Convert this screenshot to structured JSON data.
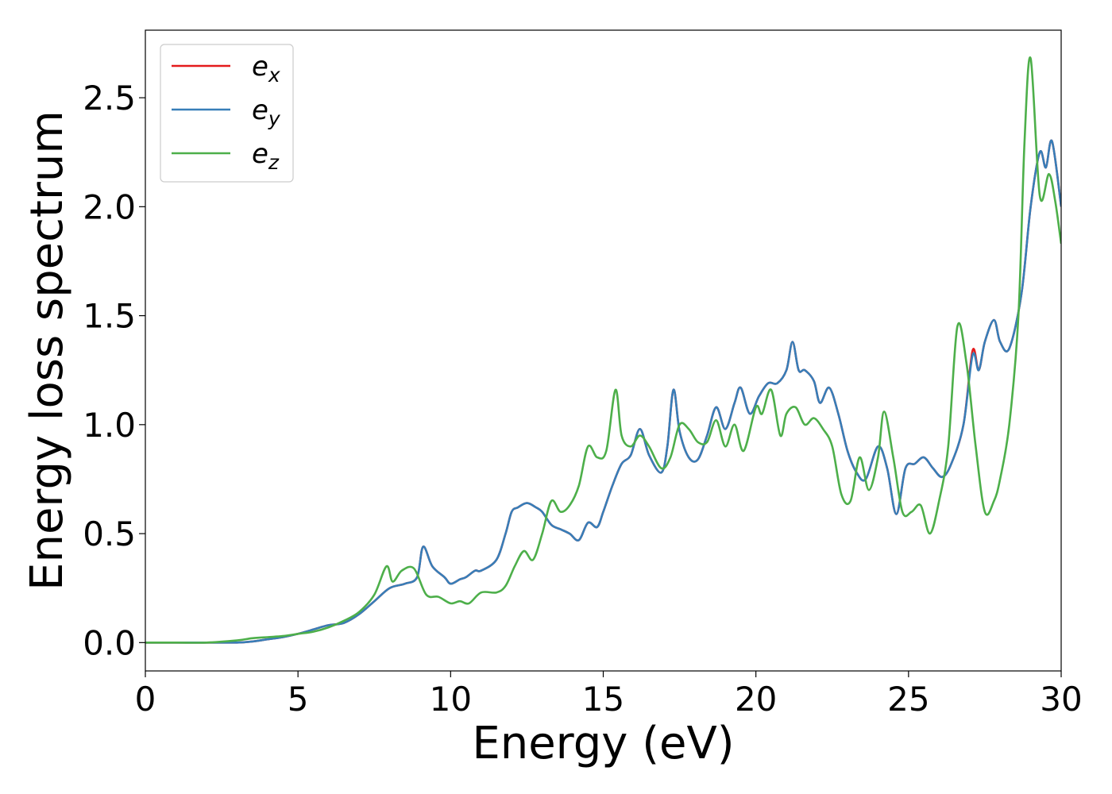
{
  "chart_data": {
    "type": "line",
    "xlabel": "Energy (eV)",
    "ylabel": "Energy loss spectrum",
    "xlim": [
      0,
      30
    ],
    "ylim": [
      -0.13,
      2.81
    ],
    "xticks": [
      0,
      5,
      10,
      15,
      20,
      25,
      30
    ],
    "xtick_labels": [
      "0",
      "5",
      "10",
      "15",
      "20",
      "25",
      "30"
    ],
    "yticks": [
      0.0,
      0.5,
      1.0,
      1.5,
      2.0,
      2.5
    ],
    "ytick_labels": [
      "0.0",
      "0.5",
      "1.0",
      "1.5",
      "2.0",
      "2.5"
    ],
    "grid": false,
    "legend_position": "top-left",
    "series": [
      {
        "name": "e",
        "sub": "x",
        "color": "#e41a1c",
        "x": [
          0,
          1,
          2,
          3,
          3.5,
          4,
          4.5,
          5,
          5.5,
          6,
          6.5,
          7,
          7.5,
          8,
          8.5,
          8.9,
          9.1,
          9.4,
          9.8,
          10,
          10.3,
          10.5,
          10.8,
          11,
          11.5,
          11.8,
          12,
          12.2,
          12.5,
          12.8,
          13,
          13.3,
          13.6,
          13.9,
          14.2,
          14.5,
          14.8,
          15,
          15.3,
          15.6,
          15.9,
          16.2,
          16.5,
          16.9,
          17.1,
          17.3,
          17.5,
          17.8,
          18.1,
          18.4,
          18.7,
          19,
          19.3,
          19.5,
          19.8,
          20.1,
          20.4,
          20.7,
          21,
          21.2,
          21.4,
          21.6,
          21.9,
          22.1,
          22.4,
          22.7,
          23,
          23.3,
          23.6,
          24,
          24.3,
          24.6,
          24.9,
          25.2,
          25.5,
          25.8,
          26.1,
          26.4,
          26.8,
          27.1,
          27.3,
          27.5,
          27.8,
          28,
          28.3,
          28.7,
          29,
          29.3,
          29.5,
          29.7,
          30
        ],
        "values": [
          0,
          0,
          0,
          0,
          0.005,
          0.015,
          0.025,
          0.04,
          0.06,
          0.08,
          0.09,
          0.13,
          0.19,
          0.25,
          0.27,
          0.3,
          0.44,
          0.35,
          0.3,
          0.27,
          0.29,
          0.3,
          0.33,
          0.33,
          0.38,
          0.5,
          0.6,
          0.62,
          0.64,
          0.62,
          0.6,
          0.54,
          0.52,
          0.5,
          0.47,
          0.55,
          0.53,
          0.6,
          0.72,
          0.82,
          0.86,
          0.98,
          0.86,
          0.78,
          0.9,
          1.16,
          0.97,
          0.85,
          0.84,
          0.95,
          1.08,
          0.98,
          1.1,
          1.17,
          1.05,
          1.13,
          1.19,
          1.19,
          1.25,
          1.38,
          1.25,
          1.25,
          1.2,
          1.1,
          1.17,
          1.05,
          0.88,
          0.78,
          0.75,
          0.9,
          0.8,
          0.59,
          0.8,
          0.82,
          0.85,
          0.8,
          0.76,
          0.82,
          1.0,
          1.34,
          1.25,
          1.38,
          1.48,
          1.38,
          1.35,
          1.6,
          2.0,
          2.25,
          2.18,
          2.3,
          2.0
        ]
      },
      {
        "name": "e",
        "sub": "y",
        "color": "#377eb8",
        "x": [
          0,
          1,
          2,
          3,
          3.5,
          4,
          4.5,
          5,
          5.5,
          6,
          6.5,
          7,
          7.5,
          8,
          8.5,
          8.9,
          9.1,
          9.4,
          9.8,
          10,
          10.3,
          10.5,
          10.8,
          11,
          11.5,
          11.8,
          12,
          12.2,
          12.5,
          12.8,
          13,
          13.3,
          13.6,
          13.9,
          14.2,
          14.5,
          14.8,
          15,
          15.3,
          15.6,
          15.9,
          16.2,
          16.5,
          16.9,
          17.1,
          17.3,
          17.5,
          17.8,
          18.1,
          18.4,
          18.7,
          19,
          19.3,
          19.5,
          19.8,
          20.1,
          20.4,
          20.7,
          21,
          21.2,
          21.4,
          21.6,
          21.9,
          22.1,
          22.4,
          22.7,
          23,
          23.3,
          23.6,
          24,
          24.3,
          24.6,
          24.9,
          25.2,
          25.5,
          25.8,
          26.1,
          26.4,
          26.8,
          27.1,
          27.3,
          27.5,
          27.8,
          28,
          28.3,
          28.7,
          29,
          29.3,
          29.5,
          29.7,
          30
        ],
        "values": [
          0,
          0,
          0,
          0,
          0.005,
          0.015,
          0.025,
          0.04,
          0.06,
          0.08,
          0.09,
          0.13,
          0.19,
          0.25,
          0.27,
          0.3,
          0.44,
          0.35,
          0.3,
          0.27,
          0.29,
          0.3,
          0.33,
          0.33,
          0.38,
          0.5,
          0.6,
          0.62,
          0.64,
          0.62,
          0.6,
          0.54,
          0.52,
          0.5,
          0.47,
          0.55,
          0.53,
          0.6,
          0.72,
          0.82,
          0.86,
          0.98,
          0.86,
          0.78,
          0.9,
          1.16,
          0.97,
          0.85,
          0.84,
          0.95,
          1.08,
          0.98,
          1.1,
          1.17,
          1.05,
          1.13,
          1.19,
          1.19,
          1.25,
          1.38,
          1.25,
          1.25,
          1.2,
          1.1,
          1.17,
          1.05,
          0.88,
          0.78,
          0.75,
          0.9,
          0.8,
          0.59,
          0.8,
          0.82,
          0.85,
          0.8,
          0.76,
          0.82,
          1.0,
          1.32,
          1.25,
          1.38,
          1.48,
          1.38,
          1.35,
          1.6,
          2.0,
          2.25,
          2.18,
          2.3,
          2.0
        ]
      },
      {
        "name": "e",
        "sub": "z",
        "color": "#4daf4a",
        "x": [
          0,
          1,
          2,
          3,
          3.5,
          4,
          4.5,
          5,
          5.5,
          6,
          6.5,
          7,
          7.5,
          7.9,
          8.1,
          8.4,
          8.8,
          9.2,
          9.6,
          10,
          10.3,
          10.6,
          11,
          11.5,
          11.8,
          12.1,
          12.4,
          12.7,
          13,
          13.3,
          13.6,
          13.9,
          14.2,
          14.5,
          14.8,
          15.1,
          15.4,
          15.6,
          15.9,
          16.2,
          16.5,
          16.9,
          17.2,
          17.5,
          17.8,
          18.1,
          18.4,
          18.7,
          19,
          19.3,
          19.6,
          20,
          20.2,
          20.5,
          20.8,
          21,
          21.3,
          21.6,
          21.9,
          22.2,
          22.5,
          22.8,
          23.1,
          23.4,
          23.7,
          24,
          24.2,
          24.5,
          24.8,
          25.1,
          25.4,
          25.7,
          26,
          26.3,
          26.6,
          26.9,
          27.2,
          27.5,
          27.8,
          28,
          28.3,
          28.6,
          28.8,
          29,
          29.3,
          29.6,
          29.8,
          30
        ],
        "values": [
          0,
          0,
          0,
          0.01,
          0.02,
          0.025,
          0.03,
          0.04,
          0.05,
          0.07,
          0.1,
          0.14,
          0.22,
          0.35,
          0.28,
          0.33,
          0.34,
          0.22,
          0.21,
          0.18,
          0.19,
          0.18,
          0.23,
          0.23,
          0.26,
          0.35,
          0.42,
          0.38,
          0.5,
          0.65,
          0.6,
          0.63,
          0.72,
          0.9,
          0.85,
          0.88,
          1.16,
          0.95,
          0.9,
          0.95,
          0.9,
          0.8,
          0.85,
          1.0,
          0.98,
          0.92,
          0.92,
          1.02,
          0.9,
          1.0,
          0.88,
          1.08,
          1.05,
          1.16,
          0.95,
          1.05,
          1.08,
          1.0,
          1.03,
          0.98,
          0.9,
          0.68,
          0.65,
          0.85,
          0.7,
          0.85,
          1.06,
          0.85,
          0.6,
          0.6,
          0.63,
          0.5,
          0.65,
          0.9,
          1.45,
          1.28,
          0.9,
          0.6,
          0.65,
          0.75,
          1.0,
          1.5,
          2.3,
          2.68,
          2.05,
          2.15,
          2.03,
          1.83
        ]
      }
    ]
  }
}
